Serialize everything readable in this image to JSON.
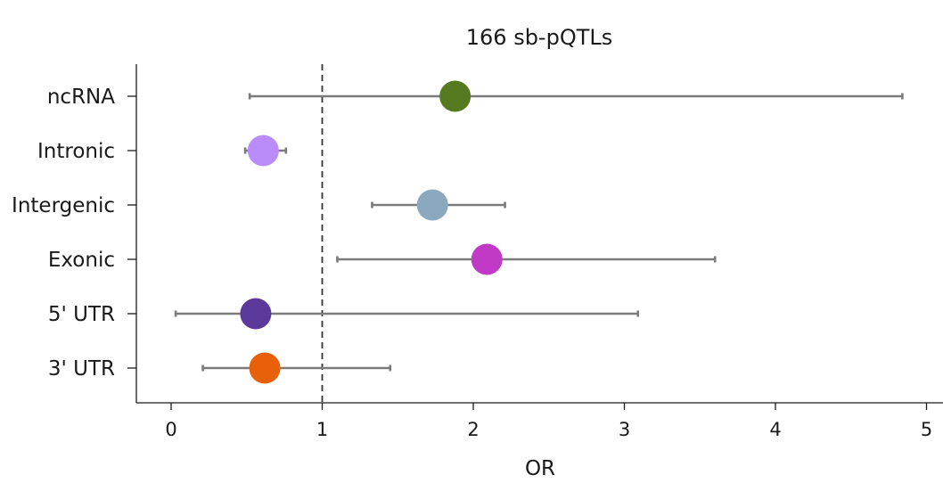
{
  "chart_data": {
    "type": "forest",
    "title": "166 sb-pQTLs",
    "xlabel": "OR",
    "ylabel": "",
    "xlim": [
      -0.22,
      5.1
    ],
    "xticks": [
      0,
      1,
      2,
      3,
      4,
      5
    ],
    "reference_line": 1,
    "grid": false,
    "categories": [
      "ncRNA",
      "Intronic",
      "Intergenic",
      "Exonic",
      "5' UTR",
      "3' UTR"
    ],
    "points": [
      {
        "category": "ncRNA",
        "or": 1.88,
        "ci_low": 0.52,
        "ci_high": 4.84,
        "color": "#557a1f"
      },
      {
        "category": "Intronic",
        "or": 0.61,
        "ci_low": 0.49,
        "ci_high": 0.76,
        "color": "#b98cf9"
      },
      {
        "category": "Intergenic",
        "or": 1.73,
        "ci_low": 1.33,
        "ci_high": 2.21,
        "color": "#8aa8be"
      },
      {
        "category": "Exonic",
        "or": 2.09,
        "ci_low": 1.1,
        "ci_high": 3.6,
        "color": "#c03ac6"
      },
      {
        "category": "5' UTR",
        "or": 0.56,
        "ci_low": 0.03,
        "ci_high": 3.09,
        "color": "#5b3a9c"
      },
      {
        "category": "3' UTR",
        "or": 0.62,
        "ci_low": 0.21,
        "ci_high": 1.45,
        "color": "#e8600a"
      }
    ]
  }
}
